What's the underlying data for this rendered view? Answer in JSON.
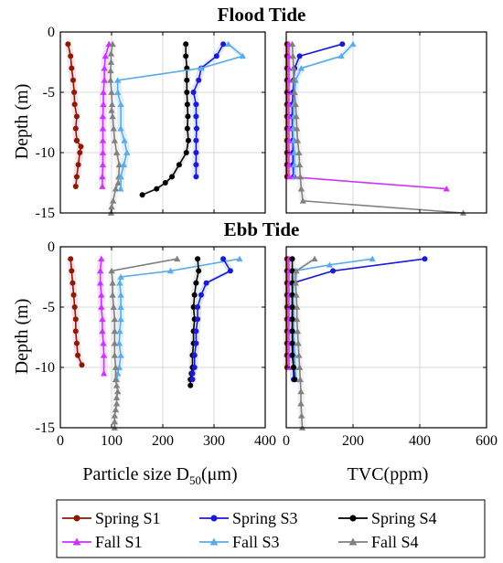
{
  "chart_data": [
    {
      "type": "line",
      "title": "Flood Tide",
      "panel": "top-left",
      "xlabel": "",
      "ylabel": "Depth (m)",
      "xlim": [
        0,
        400
      ],
      "ylim": [
        -15,
        0
      ],
      "xticks": [],
      "yticks": [
        "0",
        "-5",
        "-10",
        "-15"
      ],
      "grid": true,
      "series": [
        {
          "name": "Spring S1",
          "color": "#8b1a00",
          "marker": "circle",
          "shade": "#f2c8d8",
          "x": [
            15,
            20,
            22,
            25,
            27,
            28,
            32,
            30,
            32
          ],
          "y": [
            -1,
            -2,
            -3,
            -4,
            -5,
            -6,
            -7,
            -8,
            -9
          ]
        },
        {
          "name": "Spring S1",
          "color": "#8b1a00",
          "marker": "circle",
          "shade": "#f2c8d8",
          "x": [
            32,
            40,
            38,
            35,
            32,
            30
          ],
          "y": [
            -9,
            -9.5,
            -10,
            -11,
            -12,
            -12.8
          ]
        },
        {
          "name": "Fall S1",
          "color": "#cc33ff",
          "marker": "triangle",
          "shade": "#ecc8f6",
          "x": [
            95,
            88,
            86,
            86,
            84,
            84,
            83,
            83,
            83,
            83,
            83,
            82,
            82
          ],
          "y": [
            -1,
            -2,
            -3,
            -4,
            -5,
            -6,
            -7,
            -8,
            -9,
            -10,
            -11,
            -12,
            -12.8
          ]
        },
        {
          "name": "Fall S4",
          "color": "#808080",
          "marker": "triangle",
          "shade": "#e8e8e8",
          "x": [
            102,
            99,
            99,
            98,
            98,
            100,
            101,
            100,
            102,
            104,
            106,
            110,
            115,
            114,
            113,
            108,
            103,
            100,
            99
          ],
          "y": [
            -1,
            -1.8,
            -2.5,
            -3.2,
            -4,
            -5,
            -6,
            -6.5,
            -7,
            -8,
            -9,
            -10,
            -11,
            -12,
            -12.5,
            -13,
            -14,
            -14.5,
            -15
          ]
        },
        {
          "name": "Spring S4",
          "color": "#000000",
          "marker": "circle",
          "shade": "#dddddd",
          "x": [
            245,
            245,
            247,
            247,
            247,
            248,
            249,
            248,
            250,
            246,
            232,
            218,
            205,
            188,
            160
          ],
          "y": [
            -1,
            -2,
            -3,
            -4,
            -5,
            -6,
            -7,
            -8,
            -9,
            -10,
            -11,
            -12,
            -12.5,
            -13,
            -13.5
          ]
        },
        {
          "name": "Spring S3",
          "color": "#1a1ad6",
          "marker": "circle",
          "shade": "#c8d4f2",
          "x": [
            318,
            305,
            275,
            270,
            260,
            265,
            265,
            266,
            265,
            265,
            265,
            265
          ],
          "y": [
            -1,
            -2,
            -3,
            -4,
            -5,
            -6,
            -7,
            -8,
            -9,
            -10,
            -11,
            -12
          ]
        },
        {
          "name": "Fall S3",
          "color": "#5aacea",
          "marker": "triangle",
          "shade": "#c8e4f6",
          "x": [
            328,
            356,
            275,
            112,
            112,
            118,
            118,
            125,
            130,
            124,
            118,
            118
          ],
          "y": [
            -1,
            -2,
            -3,
            -4,
            -5,
            -6,
            -8,
            -9,
            -10,
            -11,
            -12,
            -13
          ]
        }
      ]
    },
    {
      "type": "line",
      "panel": "top-right",
      "xlabel": "",
      "ylabel": "",
      "xlim": [
        0,
        600
      ],
      "ylim": [
        -15,
        0
      ],
      "xticks": [],
      "yticks": [],
      "grid": true,
      "series": [
        {
          "name": "Spring S1",
          "color": "#8b1a00",
          "marker": "circle",
          "shade": "#f2c8d8",
          "x": [
            2,
            2,
            2,
            2,
            2,
            2,
            2,
            2,
            2,
            2,
            2,
            2
          ],
          "y": [
            -1,
            -2,
            -3,
            -4,
            -5,
            -6,
            -7,
            -8,
            -9,
            -10,
            -11,
            -12
          ]
        },
        {
          "name": "Spring S3",
          "color": "#1a1ad6",
          "marker": "circle",
          "shade": "#c8d4f2",
          "x": [
            168,
            40,
            25,
            22,
            20,
            18,
            18,
            18,
            20,
            20,
            20,
            22
          ],
          "y": [
            -1,
            -2,
            -3,
            -4,
            -5,
            -6,
            -7,
            -8,
            -9,
            -10,
            -11,
            -12
          ]
        },
        {
          "name": "Fall S3",
          "color": "#5aacea",
          "marker": "triangle",
          "shade": "#c8e4f6",
          "x": [
            200,
            165,
            45,
            28,
            25,
            22,
            22,
            20,
            22,
            24,
            24,
            24
          ],
          "y": [
            -1,
            -2,
            -3,
            -4,
            -5,
            -6,
            -7,
            -8,
            -9,
            -10,
            -11,
            -12
          ]
        },
        {
          "name": "Fall S1",
          "color": "#cc33ff",
          "marker": "triangle",
          "shade": "#ecc8f6",
          "x": [
            8,
            8,
            8,
            8,
            8,
            8,
            8,
            8,
            8,
            8,
            8,
            8,
            480
          ],
          "y": [
            -1,
            -2,
            -3,
            -4,
            -5,
            -6,
            -7,
            -8,
            -9,
            -10,
            -11,
            -12,
            -13
          ]
        },
        {
          "name": "Fall S4",
          "color": "#808080",
          "marker": "triangle",
          "shade": "#e8e8e8",
          "x": [
            18,
            20,
            22,
            22,
            24,
            28,
            30,
            32,
            34,
            38,
            40,
            42,
            45,
            50,
            530
          ],
          "y": [
            -1,
            -2,
            -3,
            -4,
            -5,
            -6,
            -7,
            -8,
            -9,
            -10,
            -11,
            -12,
            -13,
            -14,
            -15
          ]
        }
      ]
    },
    {
      "type": "line",
      "title": "Ebb Tide",
      "panel": "bottom-left",
      "xlabel": "Particle size D",
      "xlabel_sub": "50",
      "xlabel_unit": "(μm)",
      "ylabel": "Depth (m)",
      "xlim": [
        0,
        400
      ],
      "ylim": [
        -15,
        0
      ],
      "xticks": [
        "0",
        "100",
        "200",
        "300",
        "400"
      ],
      "yticks": [
        "0",
        "-5",
        "-10",
        "-15"
      ],
      "grid": true,
      "series": [
        {
          "name": "Spring S1",
          "color": "#8b1a00",
          "marker": "circle",
          "shade": "#f2c8d8",
          "x": [
            20,
            22,
            24,
            26,
            28,
            30,
            30,
            32,
            34,
            42
          ],
          "y": [
            -1,
            -2,
            -3,
            -4,
            -5,
            -6,
            -7,
            -8,
            -9,
            -9.8
          ]
        },
        {
          "name": "Fall S1",
          "color": "#cc33ff",
          "marker": "triangle",
          "shade": "#ecc8f6",
          "x": [
            80,
            78,
            78,
            80,
            80,
            82,
            82,
            84,
            85,
            85
          ],
          "y": [
            -1,
            -2,
            -3,
            -4,
            -5,
            -6,
            -7,
            -8,
            -9,
            -10.5
          ]
        },
        {
          "name": "Fall S3",
          "color": "#5aacea",
          "marker": "triangle",
          "shade": "#c8e4f6",
          "x": [
            350,
            215,
            118,
            116,
            118,
            118,
            118,
            116,
            115,
            118,
            115,
            112,
            110
          ],
          "y": [
            -1,
            -2,
            -2.5,
            -3,
            -4,
            -5,
            -6,
            -7,
            -8,
            -9,
            -10,
            -10.5,
            -11
          ]
        },
        {
          "name": "Fall S4",
          "color": "#808080",
          "marker": "triangle",
          "shade": "#e8e8e8",
          "x": [
            228,
            100,
            102,
            102,
            104,
            106,
            106,
            106,
            106,
            108,
            108,
            110,
            112,
            110,
            110,
            108,
            106,
            106,
            106
          ],
          "y": [
            -1,
            -2,
            -3,
            -4,
            -5,
            -6,
            -7,
            -8,
            -9,
            -10,
            -11,
            -11.5,
            -12,
            -12.5,
            -13,
            -13.5,
            -14,
            -14.5,
            -15
          ]
        },
        {
          "name": "Spring S4",
          "color": "#000000",
          "marker": "circle",
          "shade": "#dddddd",
          "x": [
            268,
            270,
            265,
            262,
            260,
            262,
            260,
            260,
            258,
            258,
            256,
            254,
            254
          ],
          "y": [
            -1,
            -2,
            -3,
            -4,
            -5,
            -6,
            -7,
            -8,
            -9,
            -10,
            -10.5,
            -11,
            -11.5
          ]
        },
        {
          "name": "Spring S3",
          "color": "#1a1ad6",
          "marker": "circle",
          "shade": "#c8d4f2",
          "x": [
            318,
            332,
            285,
            275,
            268,
            268,
            265,
            265,
            262,
            262,
            258,
            258
          ],
          "y": [
            -1,
            -2,
            -3,
            -4,
            -5,
            -6,
            -7,
            -8,
            -9,
            -10,
            -10.5,
            -11
          ]
        }
      ]
    },
    {
      "type": "line",
      "panel": "bottom-right",
      "xlabel": "TVC(ppm)",
      "ylabel": "",
      "xlim": [
        0,
        600
      ],
      "ylim": [
        -15,
        0
      ],
      "xticks": [
        "0",
        "200",
        "400",
        "600"
      ],
      "yticks": [],
      "grid": true,
      "series": [
        {
          "name": "Spring S1",
          "color": "#8b1a00",
          "marker": "circle",
          "shade": "#f2c8d8",
          "x": [
            2,
            2,
            2,
            2,
            2,
            2,
            2,
            2,
            2,
            2
          ],
          "y": [
            -1,
            -2,
            -3,
            -4,
            -5,
            -6,
            -7,
            -8,
            -9,
            -10
          ]
        },
        {
          "name": "Fall S1",
          "color": "#cc33ff",
          "marker": "triangle",
          "shade": "#ecc8f6",
          "x": [
            8,
            8,
            8,
            8,
            8,
            8,
            8,
            8,
            8,
            8
          ],
          "y": [
            -1,
            -2,
            -3,
            -4,
            -5,
            -6,
            -7,
            -8,
            -9,
            -10
          ]
        },
        {
          "name": "Spring S3",
          "color": "#1a1ad6",
          "marker": "circle",
          "shade": "#c8d4f2",
          "x": [
            415,
            140,
            20,
            18,
            18,
            18,
            18,
            20,
            20,
            22,
            22
          ],
          "y": [
            -1,
            -2,
            -3,
            -4,
            -5,
            -6,
            -7,
            -8,
            -9,
            -10,
            -11
          ]
        },
        {
          "name": "Fall S3",
          "color": "#5aacea",
          "marker": "triangle",
          "shade": "#c8e4f6",
          "x": [
            258,
            130,
            25,
            22,
            20,
            22,
            22,
            22,
            24,
            25,
            26,
            30
          ],
          "y": [
            -1,
            -1.5,
            -2,
            -3,
            -4,
            -5,
            -6,
            -7,
            -8,
            -9,
            -10,
            -11
          ]
        },
        {
          "name": "Spring S4",
          "color": "#000000",
          "marker": "circle",
          "shade": "#dddddd",
          "x": [
            18,
            18,
            18,
            18,
            18,
            18,
            18,
            18,
            18,
            22,
            25
          ],
          "y": [
            -1,
            -2,
            -3,
            -4,
            -5,
            -6,
            -7,
            -8,
            -9,
            -10,
            -11
          ]
        },
        {
          "name": "Fall S4",
          "color": "#808080",
          "marker": "triangle",
          "shade": "#e8e8e8",
          "x": [
            85,
            30,
            28,
            30,
            32,
            32,
            34,
            36,
            38,
            40,
            42,
            44,
            44,
            46,
            48
          ],
          "y": [
            -1,
            -2,
            -3,
            -4,
            -5,
            -6,
            -7,
            -8,
            -9,
            -10,
            -11,
            -12,
            -13,
            -14,
            -15
          ]
        }
      ]
    }
  ],
  "legend": {
    "placement": "bottom",
    "items": [
      {
        "label": "Spring S1",
        "color": "#8b1a00",
        "marker": "circle"
      },
      {
        "label": "Spring S3",
        "color": "#1a1ad6",
        "marker": "circle"
      },
      {
        "label": "Spring S4",
        "color": "#000000",
        "marker": "circle"
      },
      {
        "label": "Fall S1",
        "color": "#cc33ff",
        "marker": "triangle"
      },
      {
        "label": "Fall S3",
        "color": "#5aacea",
        "marker": "triangle"
      },
      {
        "label": "Fall S4",
        "color": "#808080",
        "marker": "triangle"
      }
    ]
  }
}
